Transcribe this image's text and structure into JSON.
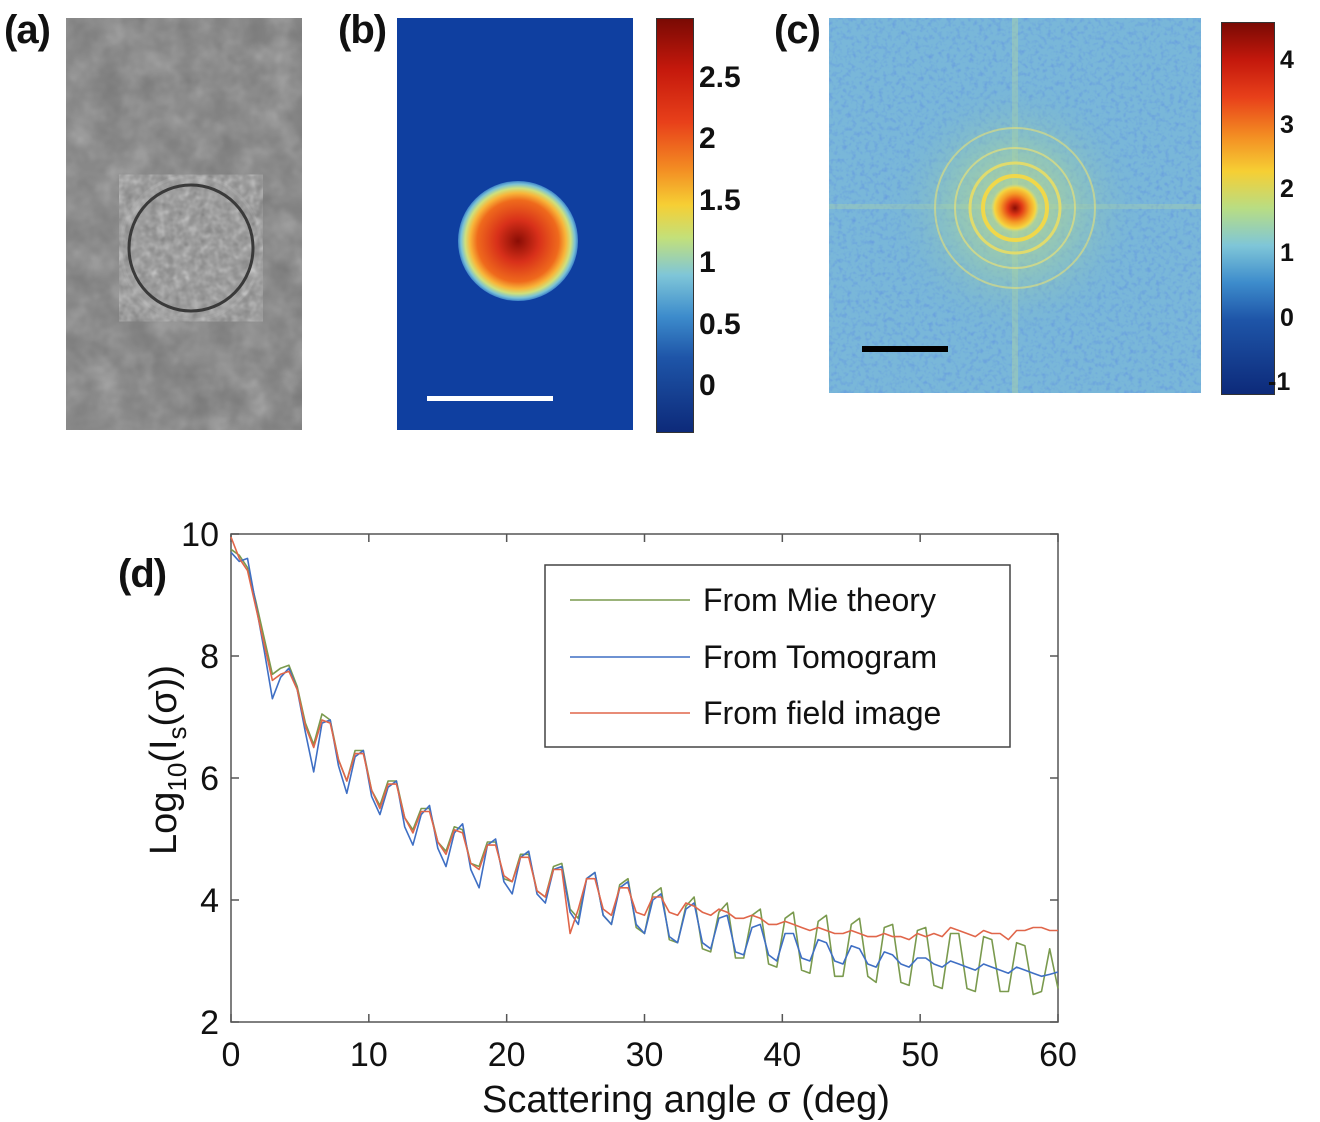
{
  "panels": {
    "a": {
      "label": "(a)"
    },
    "b": {
      "label": "(b)",
      "colorbar_ticks": [
        "2.5",
        "2",
        "1.5",
        "1",
        "0.5",
        "0"
      ]
    },
    "c": {
      "label": "(c)",
      "colorbar_ticks": [
        "4",
        "3",
        "2",
        "1",
        "0",
        "-1"
      ]
    },
    "d": {
      "label": "(d)"
    }
  },
  "colors": {
    "mie": "#7a9a4e",
    "tomogram": "#3f6fc4",
    "field": "#e0664a",
    "b_background": "#0f3fa0",
    "c_background": "#6fb0d8"
  },
  "chart_data": {
    "type": "line",
    "xlabel": "Scattering angle σ (deg)",
    "ylabel_parts": {
      "main": "Log",
      "sub": "10",
      "rest1": "(I",
      "sub2": "s",
      "rest2": "(σ))"
    },
    "xlim": [
      0,
      60
    ],
    "ylim": [
      2,
      10
    ],
    "xticks": [
      0,
      10,
      20,
      30,
      40,
      50,
      60
    ],
    "yticks": [
      2,
      4,
      6,
      8,
      10
    ],
    "legend_position": "top-right",
    "series": [
      {
        "name": "From Mie theory",
        "color": "#7a9a4e",
        "x": [
          0,
          0.6,
          1.2,
          1.8,
          2.4,
          3.0,
          3.6,
          4.2,
          4.8,
          5.4,
          6.0,
          6.6,
          7.2,
          7.8,
          8.4,
          9.0,
          9.6,
          10.2,
          10.8,
          11.4,
          12.0,
          12.6,
          13.2,
          13.8,
          14.4,
          15.0,
          15.6,
          16.2,
          16.8,
          17.4,
          18.0,
          18.6,
          19.2,
          19.8,
          20.4,
          21.0,
          21.6,
          22.2,
          22.8,
          23.4,
          24.0,
          24.6,
          25.2,
          25.8,
          26.4,
          27.0,
          27.6,
          28.2,
          28.8,
          29.4,
          30.0,
          30.6,
          31.2,
          31.8,
          32.4,
          33.0,
          33.6,
          34.2,
          34.8,
          35.4,
          36.0,
          36.6,
          37.2,
          37.8,
          38.4,
          39.0,
          39.6,
          40.2,
          40.8,
          41.4,
          42.0,
          42.6,
          43.2,
          43.8,
          44.4,
          45.0,
          45.6,
          46.2,
          46.8,
          47.4,
          48.0,
          48.6,
          49.2,
          49.8,
          50.4,
          51.0,
          51.6,
          52.2,
          52.8,
          53.4,
          54.0,
          54.6,
          55.2,
          55.8,
          56.4,
          57.0,
          57.6,
          58.2,
          58.8,
          59.4,
          60.0
        ],
        "y": [
          9.75,
          9.65,
          9.45,
          8.9,
          8.3,
          7.7,
          7.8,
          7.85,
          7.5,
          6.9,
          6.55,
          7.05,
          6.95,
          6.3,
          5.95,
          6.45,
          6.45,
          5.8,
          5.55,
          5.95,
          5.95,
          5.35,
          5.15,
          5.5,
          5.5,
          4.95,
          4.8,
          5.2,
          5.15,
          4.6,
          4.55,
          4.95,
          4.95,
          4.35,
          4.3,
          4.75,
          4.75,
          4.15,
          4.05,
          4.55,
          4.6,
          3.85,
          3.7,
          4.35,
          4.45,
          3.75,
          3.6,
          4.25,
          4.35,
          3.55,
          3.45,
          4.1,
          4.2,
          3.35,
          3.3,
          3.9,
          4.05,
          3.2,
          3.15,
          3.8,
          3.95,
          3.05,
          3.05,
          3.75,
          3.85,
          2.95,
          2.9,
          3.7,
          3.8,
          2.85,
          2.8,
          3.65,
          3.75,
          2.75,
          2.75,
          3.6,
          3.7,
          2.75,
          2.65,
          3.55,
          3.6,
          2.65,
          2.6,
          3.5,
          3.55,
          2.6,
          2.55,
          3.45,
          3.45,
          2.55,
          2.5,
          3.4,
          3.35,
          2.5,
          2.5,
          3.3,
          3.25,
          2.45,
          2.5,
          3.2,
          2.55
        ]
      },
      {
        "name": "From Tomogram",
        "color": "#3f6fc4",
        "x": [
          0,
          0.6,
          1.2,
          1.8,
          2.4,
          3.0,
          3.6,
          4.2,
          4.8,
          5.4,
          6.0,
          6.6,
          7.2,
          7.8,
          8.4,
          9.0,
          9.6,
          10.2,
          10.8,
          11.4,
          12.0,
          12.6,
          13.2,
          13.8,
          14.4,
          15.0,
          15.6,
          16.2,
          16.8,
          17.4,
          18.0,
          18.6,
          19.2,
          19.8,
          20.4,
          21.0,
          21.6,
          22.2,
          22.8,
          23.4,
          24.0,
          24.6,
          25.2,
          25.8,
          26.4,
          27.0,
          27.6,
          28.2,
          28.8,
          29.4,
          30.0,
          30.6,
          31.2,
          31.8,
          32.4,
          33.0,
          33.6,
          34.2,
          34.8,
          35.4,
          36.0,
          36.6,
          37.2,
          37.8,
          38.4,
          39.0,
          39.6,
          40.2,
          40.8,
          41.4,
          42.0,
          42.6,
          43.2,
          43.8,
          44.4,
          45.0,
          45.6,
          46.2,
          46.8,
          47.4,
          48.0,
          48.6,
          49.2,
          49.8,
          50.4,
          51.0,
          51.6,
          52.2,
          52.8,
          53.4,
          54.0,
          54.6,
          55.2,
          55.8,
          56.4,
          57.0,
          57.6,
          58.2,
          58.8,
          59.4,
          60.0
        ],
        "y": [
          9.7,
          9.55,
          9.6,
          8.85,
          8.1,
          7.3,
          7.65,
          7.8,
          7.45,
          6.75,
          6.1,
          6.9,
          6.95,
          6.2,
          5.75,
          6.35,
          6.45,
          5.7,
          5.4,
          5.85,
          5.95,
          5.2,
          4.9,
          5.4,
          5.55,
          4.85,
          4.55,
          5.1,
          5.25,
          4.5,
          4.2,
          4.9,
          5.0,
          4.3,
          4.1,
          4.7,
          4.8,
          4.1,
          3.95,
          4.5,
          4.55,
          3.8,
          3.6,
          4.35,
          4.45,
          3.75,
          3.6,
          4.2,
          4.3,
          3.6,
          3.45,
          4.0,
          4.1,
          3.4,
          3.3,
          3.85,
          3.95,
          3.3,
          3.2,
          3.7,
          3.75,
          3.15,
          3.1,
          3.55,
          3.6,
          3.1,
          3.0,
          3.45,
          3.45,
          3.05,
          3.0,
          3.35,
          3.3,
          3.0,
          2.95,
          3.25,
          3.2,
          2.95,
          2.9,
          3.15,
          3.1,
          2.95,
          2.9,
          3.05,
          3.05,
          2.95,
          2.9,
          3.0,
          2.95,
          2.9,
          2.85,
          2.95,
          2.9,
          2.85,
          2.8,
          2.9,
          2.85,
          2.8,
          2.75,
          2.78,
          2.82
        ]
      },
      {
        "name": "From field image",
        "color": "#e0664a",
        "x": [
          0,
          0.6,
          1.2,
          1.8,
          2.4,
          3.0,
          3.6,
          4.2,
          4.8,
          5.4,
          6.0,
          6.6,
          7.2,
          7.8,
          8.4,
          9.0,
          9.6,
          10.2,
          10.8,
          11.4,
          12.0,
          12.6,
          13.2,
          13.8,
          14.4,
          15.0,
          15.6,
          16.2,
          16.8,
          17.4,
          18.0,
          18.6,
          19.2,
          19.8,
          20.4,
          21.0,
          21.6,
          22.2,
          22.8,
          23.4,
          24.0,
          24.6,
          25.2,
          25.8,
          26.4,
          27.0,
          27.6,
          28.2,
          28.8,
          29.4,
          30.0,
          30.6,
          31.2,
          31.8,
          32.4,
          33.0,
          33.6,
          34.2,
          34.8,
          35.4,
          36.0,
          36.6,
          37.2,
          37.8,
          38.4,
          39.0,
          39.6,
          40.2,
          40.8,
          41.4,
          42.0,
          42.6,
          43.2,
          43.8,
          44.4,
          45.0,
          45.6,
          46.2,
          46.8,
          47.4,
          48.0,
          48.6,
          49.2,
          49.8,
          50.4,
          51.0,
          51.6,
          52.2,
          52.8,
          53.4,
          54.0,
          54.6,
          55.2,
          55.8,
          56.4,
          57.0,
          57.6,
          58.2,
          58.8,
          59.4,
          60.0
        ],
        "y": [
          9.95,
          9.6,
          9.4,
          8.8,
          8.2,
          7.6,
          7.7,
          7.75,
          7.45,
          6.85,
          6.5,
          6.95,
          6.9,
          6.3,
          5.95,
          6.4,
          6.4,
          5.8,
          5.5,
          5.9,
          5.9,
          5.35,
          5.1,
          5.45,
          5.45,
          4.95,
          4.75,
          5.15,
          5.1,
          4.6,
          4.5,
          4.9,
          4.9,
          4.4,
          4.3,
          4.7,
          4.7,
          4.15,
          4.05,
          4.5,
          4.5,
          3.45,
          3.85,
          4.35,
          4.35,
          3.85,
          3.75,
          4.2,
          4.2,
          3.8,
          3.75,
          4.05,
          4.05,
          3.8,
          3.75,
          3.95,
          3.9,
          3.8,
          3.75,
          3.85,
          3.8,
          3.7,
          3.7,
          3.75,
          3.7,
          3.6,
          3.6,
          3.65,
          3.6,
          3.55,
          3.5,
          3.55,
          3.5,
          3.45,
          3.45,
          3.5,
          3.45,
          3.4,
          3.4,
          3.45,
          3.4,
          3.4,
          3.35,
          3.45,
          3.4,
          3.45,
          3.4,
          3.55,
          3.5,
          3.45,
          3.4,
          3.5,
          3.45,
          3.45,
          3.35,
          3.5,
          3.5,
          3.55,
          3.55,
          3.5,
          3.5
        ]
      }
    ]
  }
}
